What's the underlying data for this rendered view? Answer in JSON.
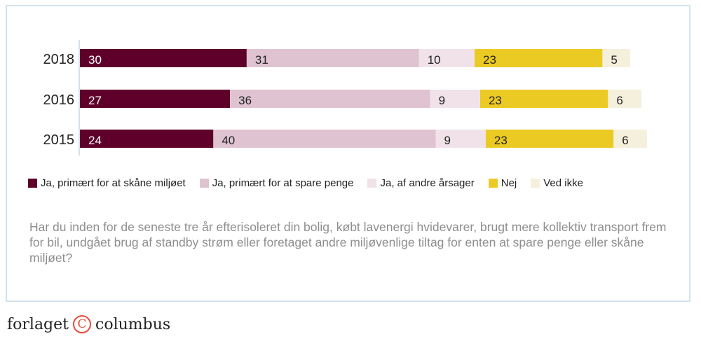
{
  "chart_data": {
    "type": "bar",
    "orientation": "horizontal",
    "stacked": true,
    "categories": [
      "2018",
      "2016",
      "2015"
    ],
    "series": [
      {
        "name": "Ja, primært for at skåne miljøet",
        "color": "#5e0029",
        "label_color": "#ffffff",
        "values": [
          30,
          27,
          24
        ]
      },
      {
        "name": "Ja, primært for at spare penge",
        "color": "#dfc3d0",
        "label_color": "#222222",
        "values": [
          31,
          36,
          40
        ]
      },
      {
        "name": "Ja, af andre årsager",
        "color": "#f1e2e9",
        "label_color": "#222222",
        "values": [
          10,
          9,
          9
        ]
      },
      {
        "name": "Nej",
        "color": "#ecca24",
        "label_color": "#222222",
        "values": [
          23,
          23,
          23
        ]
      },
      {
        "name": "Ved ikke",
        "color": "#f5f0dc",
        "label_color": "#222222",
        "values": [
          5,
          6,
          6
        ]
      }
    ],
    "legend_position": "bottom",
    "grid": false
  },
  "question": "Har du inden for de seneste tre år efterisoleret din bolig, købt lavenergi hvidevarer, brugt mere kollektiv transport frem for bil, undgået brug af standby strøm eller foretaget andre miljøvenlige tiltag for enten at spare penge eller skåne miljøet?",
  "logo": {
    "left": "forlaget",
    "symbol": "C",
    "right": "columbus"
  }
}
